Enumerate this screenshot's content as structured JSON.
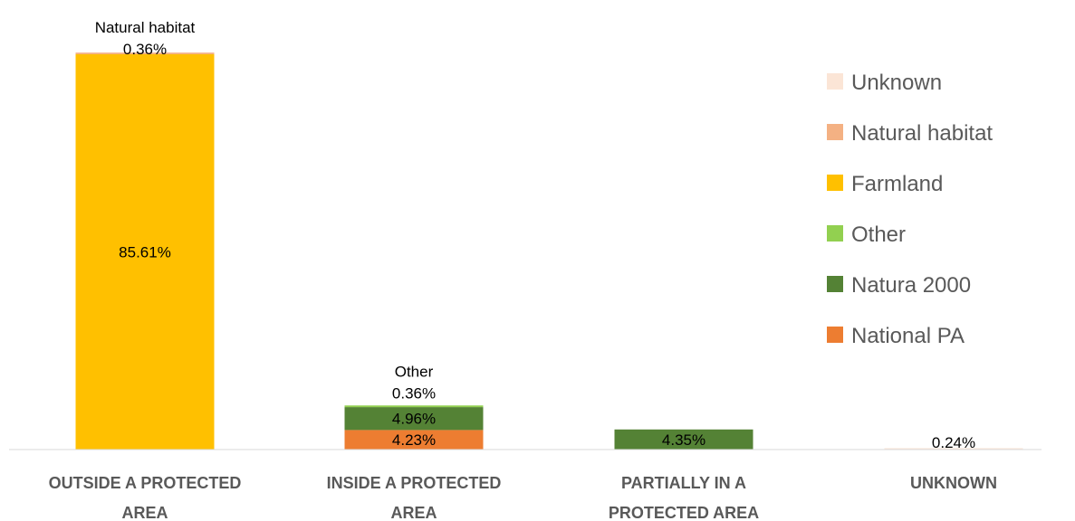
{
  "chart_data": {
    "type": "bar",
    "stacked": true,
    "categories": [
      [
        "OUTSIDE A PROTECTED",
        "AREA"
      ],
      [
        "INSIDE A PROTECTED",
        "AREA"
      ],
      [
        "PARTIALLY IN A",
        "PROTECTED AREA"
      ],
      [
        "UNKNOWN"
      ]
    ],
    "ylim": [
      0,
      86
    ],
    "legend_position": "right",
    "series": [
      {
        "name": "National PA",
        "color": "#ED7D31",
        "values": [
          0,
          4.23,
          0,
          0
        ],
        "labels": [
          "",
          "4.23%",
          "",
          ""
        ]
      },
      {
        "name": "Natura 2000",
        "color": "#548235",
        "values": [
          0,
          4.96,
          4.35,
          0
        ],
        "labels": [
          "",
          "4.96%",
          "4.35%",
          ""
        ]
      },
      {
        "name": "Other",
        "color": "#92D050",
        "values": [
          0,
          0.36,
          0,
          0
        ],
        "labels": [
          "",
          "Other\n0.36%",
          "",
          ""
        ]
      },
      {
        "name": "Farmland",
        "color": "#FFC000",
        "values": [
          85.61,
          0,
          0,
          0
        ],
        "labels": [
          "85.61%",
          "",
          "",
          ""
        ]
      },
      {
        "name": "Natural habitat",
        "color": "#F4B183",
        "values": [
          0.36,
          0,
          0,
          0
        ],
        "labels": [
          "Natural habitat\n0.36%",
          "",
          "",
          ""
        ]
      },
      {
        "name": "Unknown",
        "color": "#FBE5D6",
        "values": [
          0,
          0,
          0,
          0.24
        ],
        "labels": [
          "",
          "",
          "",
          "0.24%"
        ]
      }
    ],
    "legend_order": [
      "Unknown",
      "Natural habitat",
      "Farmland",
      "Other",
      "Natura 2000",
      "National PA"
    ]
  }
}
